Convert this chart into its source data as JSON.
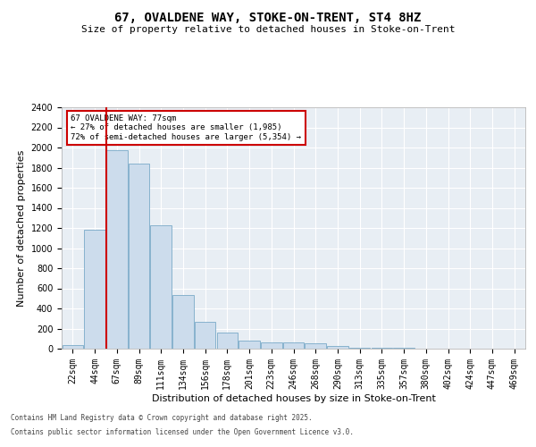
{
  "title_line1": "67, OVALDENE WAY, STOKE-ON-TRENT, ST4 8HZ",
  "title_line2": "Size of property relative to detached houses in Stoke-on-Trent",
  "xlabel": "Distribution of detached houses by size in Stoke-on-Trent",
  "ylabel": "Number of detached properties",
  "categories": [
    "22sqm",
    "44sqm",
    "67sqm",
    "89sqm",
    "111sqm",
    "134sqm",
    "156sqm",
    "178sqm",
    "201sqm",
    "223sqm",
    "246sqm",
    "268sqm",
    "290sqm",
    "313sqm",
    "335sqm",
    "357sqm",
    "380sqm",
    "402sqm",
    "424sqm",
    "447sqm",
    "469sqm"
  ],
  "values": [
    40,
    1180,
    1970,
    1840,
    1230,
    530,
    270,
    160,
    80,
    60,
    60,
    50,
    30,
    10,
    10,
    5,
    2,
    2,
    1,
    1,
    1
  ],
  "bar_color": "#ccdcec",
  "bar_edge_color": "#7aaac8",
  "red_line_x": 2,
  "annotation_text": "67 OVALDENE WAY: 77sqm\n← 27% of detached houses are smaller (1,985)\n72% of semi-detached houses are larger (5,354) →",
  "annotation_box_color": "#ffffff",
  "annotation_box_edge": "#cc0000",
  "red_line_color": "#cc0000",
  "ylim": [
    0,
    2400
  ],
  "yticks": [
    0,
    200,
    400,
    600,
    800,
    1000,
    1200,
    1400,
    1600,
    1800,
    2000,
    2200,
    2400
  ],
  "bg_color": "#e8eef4",
  "footer_line1": "Contains HM Land Registry data © Crown copyright and database right 2025.",
  "footer_line2": "Contains public sector information licensed under the Open Government Licence v3.0.",
  "title_fontsize": 10,
  "subtitle_fontsize": 8,
  "tick_fontsize": 7,
  "label_fontsize": 8
}
